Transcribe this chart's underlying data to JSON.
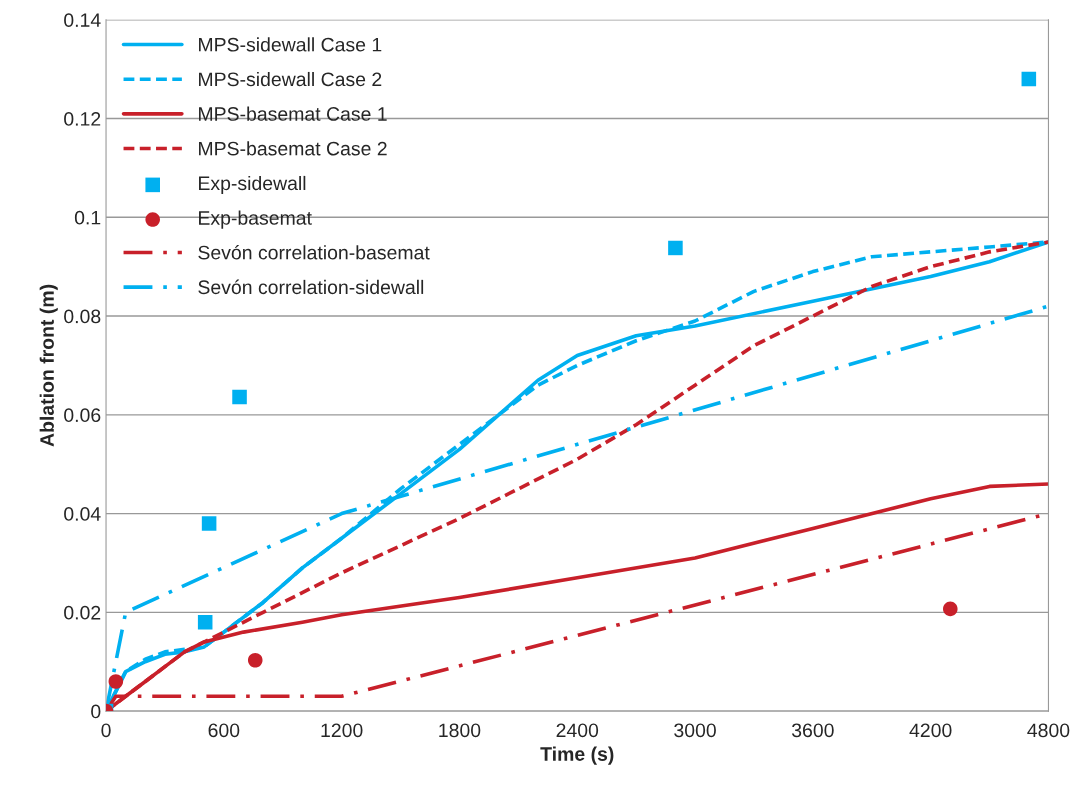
{
  "chart_data": {
    "type": "line",
    "xlabel": "Time (s)",
    "ylabel": "Ablation front (m)",
    "xlim": [
      0,
      4800
    ],
    "xticks": [
      0,
      600,
      1200,
      1800,
      2400,
      3000,
      3600,
      4200,
      4800
    ],
    "ylim": [
      0,
      0.14
    ],
    "yticks": [
      0,
      0.02,
      0.04,
      0.06,
      0.08,
      0.1,
      0.12,
      0.14
    ],
    "grid": "y",
    "legend": "top left",
    "series": [
      {
        "name": "MPS-sidewall Case 1",
        "color": "#00b0f0",
        "line_style": "solid",
        "x": [
          0,
          100,
          200,
          300,
          400,
          500,
          600,
          800,
          1000,
          1200,
          1500,
          1800,
          2000,
          2200,
          2400,
          2700,
          3000,
          3600,
          4200,
          4500,
          4800
        ],
        "values": [
          0,
          0.008,
          0.01,
          0.0115,
          0.012,
          0.013,
          0.016,
          0.022,
          0.029,
          0.035,
          0.044,
          0.053,
          0.06,
          0.067,
          0.072,
          0.076,
          0.078,
          0.083,
          0.088,
          0.091,
          0.095
        ]
      },
      {
        "name": "MPS-sidewall Case 2",
        "color": "#00b0f0",
        "line_style": "dashed",
        "x": [
          0,
          100,
          200,
          300,
          400,
          500,
          600,
          800,
          1000,
          1200,
          1500,
          1800,
          2000,
          2200,
          2400,
          2700,
          3000,
          3300,
          3600,
          3900,
          4200,
          4500,
          4800
        ],
        "values": [
          0,
          0.008,
          0.0105,
          0.012,
          0.0125,
          0.013,
          0.016,
          0.022,
          0.029,
          0.035,
          0.045,
          0.054,
          0.06,
          0.066,
          0.07,
          0.075,
          0.079,
          0.085,
          0.089,
          0.092,
          0.093,
          0.094,
          0.095
        ]
      },
      {
        "name": "MPS-basemat Case 1",
        "color": "#c8202a",
        "line_style": "solid",
        "x": [
          0,
          100,
          200,
          300,
          400,
          500,
          700,
          1000,
          1200,
          1800,
          2400,
          3000,
          3600,
          4200,
          4500,
          4800
        ],
        "values": [
          0,
          0.003,
          0.006,
          0.009,
          0.012,
          0.014,
          0.016,
          0.018,
          0.0195,
          0.023,
          0.027,
          0.031,
          0.037,
          0.043,
          0.0455,
          0.046
        ]
      },
      {
        "name": "MPS-basemat Case 2",
        "color": "#c8202a",
        "line_style": "dashed",
        "x": [
          0,
          200,
          400,
          600,
          800,
          1200,
          1800,
          2400,
          2700,
          3000,
          3300,
          3600,
          3900,
          4200,
          4500,
          4800
        ],
        "values": [
          0,
          0.006,
          0.012,
          0.016,
          0.02,
          0.028,
          0.039,
          0.051,
          0.058,
          0.066,
          0.074,
          0.08,
          0.086,
          0.09,
          0.093,
          0.095
        ]
      },
      {
        "name": "Exp-sidewall",
        "type": "scatter",
        "marker": "square",
        "color": "#00b0f0",
        "x": [
          0,
          505,
          525,
          680,
          2900,
          4700
        ],
        "values": [
          0,
          0.018,
          0.038,
          0.0636,
          0.0938,
          0.128
        ]
      },
      {
        "name": "Exp-basemat",
        "type": "scatter",
        "marker": "circle",
        "color": "#c8202a",
        "x": [
          0,
          50,
          760,
          4300
        ],
        "values": [
          0,
          0.006,
          0.0103,
          0.0207
        ]
      },
      {
        "name": "Sevón correlation-basemat",
        "color": "#c8202a",
        "line_style": "dashdot",
        "x": [
          0,
          50,
          1200,
          4800
        ],
        "values": [
          0,
          0.003,
          0.003,
          0.04
        ]
      },
      {
        "name": "Sevón correlation-sidewall",
        "color": "#00b0f0",
        "line_style": "dashdot",
        "x": [
          0,
          100,
          1200,
          4800
        ],
        "values": [
          0,
          0.02,
          0.04,
          0.082
        ]
      }
    ]
  }
}
